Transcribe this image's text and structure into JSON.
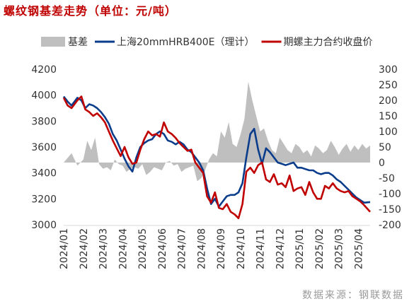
{
  "title": "螺纹钢基差走势（单位：元/吨）",
  "source": "数据来源：钢联数据",
  "colors": {
    "basis": "#bfbfbf",
    "spot": "#0a3c8c",
    "futures": "#c00000",
    "title": "#c00000"
  },
  "chart_data": {
    "type": "line",
    "legend_position": "top",
    "grid": false,
    "x_categories": [
      "2024/01",
      "2024/02",
      "2024/03",
      "2024/04",
      "2024/05",
      "2024/06",
      "2024/07",
      "2024/08",
      "2024/09",
      "2024/10",
      "2024/11",
      "2024/12",
      "2025/01",
      "2025/02",
      "2025/03",
      "2025/04"
    ],
    "left_axis": {
      "min": 3000,
      "max": 4200,
      "ticks": [
        "4200",
        "4000",
        "3800",
        "3600",
        "3400",
        "3200",
        "3000"
      ]
    },
    "right_axis": {
      "min": -200,
      "max": 300,
      "ticks": [
        "300",
        "250",
        "200",
        "150",
        "100",
        "50",
        "0",
        "-50",
        "-100",
        "-150",
        "-200"
      ]
    },
    "series": [
      {
        "name": "基差",
        "type": "area",
        "axis": "right",
        "color": "#bfbfbf",
        "x": [
          0,
          0.2,
          0.4,
          0.7,
          1.0,
          1.2,
          1.4,
          1.6,
          1.8,
          2.0,
          2.2,
          2.4,
          2.6,
          2.8,
          3.0,
          3.2,
          3.4,
          3.6,
          3.8,
          4.0,
          4.2,
          4.4,
          4.6,
          4.8,
          5.0,
          5.2,
          5.4,
          5.6,
          5.8,
          6.0,
          6.2,
          6.4,
          6.6,
          6.8,
          7.0,
          7.2,
          7.4,
          7.6,
          7.8,
          8.0,
          8.2,
          8.4,
          8.6,
          8.8,
          9.0,
          9.2,
          9.4,
          9.6,
          9.8,
          10.0,
          10.2,
          10.4,
          10.6,
          10.8,
          11.0,
          11.2,
          11.4,
          11.6,
          11.8,
          12.0,
          12.2,
          12.4,
          12.6,
          12.8,
          13.0,
          13.2,
          13.4,
          13.6,
          13.8,
          14.0,
          14.2,
          14.4,
          14.6,
          14.8,
          15.0,
          15.2,
          15.4,
          15.6
        ],
        "values": [
          0,
          15,
          30,
          -10,
          10,
          70,
          40,
          80,
          -5,
          -20,
          -15,
          -25,
          10,
          -5,
          -10,
          -30,
          -20,
          -15,
          -20,
          -5,
          -40,
          -30,
          -15,
          -20,
          -25,
          0,
          5,
          -10,
          -5,
          -30,
          -20,
          -15,
          -10,
          -60,
          -50,
          -25,
          10,
          30,
          20,
          100,
          80,
          130,
          60,
          50,
          90,
          140,
          260,
          200,
          150,
          100,
          110,
          70,
          40,
          30,
          80,
          60,
          40,
          30,
          60,
          50,
          30,
          40,
          20,
          55,
          45,
          30,
          40,
          70,
          50,
          25,
          45,
          60,
          35,
          55,
          40,
          60,
          45,
          55
        ]
      },
      {
        "name": "上海20mmHRB400E（理计）",
        "type": "line",
        "axis": "left",
        "color": "#0a3c8c",
        "x": [
          0,
          0.2,
          0.4,
          0.7,
          0.9,
          1.1,
          1.3,
          1.5,
          1.7,
          1.9,
          2.1,
          2.3,
          2.5,
          2.7,
          2.9,
          3.1,
          3.3,
          3.5,
          3.7,
          3.9,
          4.1,
          4.3,
          4.5,
          4.7,
          4.9,
          5.1,
          5.3,
          5.5,
          5.7,
          5.9,
          6.1,
          6.3,
          6.5,
          6.7,
          6.9,
          7.1,
          7.3,
          7.5,
          7.7,
          7.9,
          8.1,
          8.3,
          8.5,
          8.7,
          8.9,
          9.1,
          9.3,
          9.5,
          9.7,
          9.9,
          10.1,
          10.3,
          10.5,
          10.7,
          10.9,
          11.1,
          11.3,
          11.5,
          11.7,
          11.9,
          12.1,
          12.3,
          12.5,
          12.7,
          12.9,
          13.1,
          13.3,
          13.5,
          13.7,
          13.9,
          14.1,
          14.3,
          14.5,
          14.7,
          14.9,
          15.1,
          15.3,
          15.6
        ],
        "values": [
          3990,
          3950,
          3920,
          3980,
          3960,
          3900,
          3930,
          3920,
          3900,
          3870,
          3830,
          3780,
          3700,
          3650,
          3580,
          3510,
          3450,
          3410,
          3520,
          3600,
          3630,
          3650,
          3660,
          3700,
          3720,
          3700,
          3650,
          3640,
          3620,
          3640,
          3620,
          3580,
          3560,
          3520,
          3480,
          3420,
          3280,
          3160,
          3200,
          3140,
          3180,
          3220,
          3230,
          3230,
          3250,
          3320,
          3520,
          3700,
          3740,
          3580,
          3470,
          3590,
          3560,
          3520,
          3480,
          3470,
          3460,
          3470,
          3480,
          3440,
          3440,
          3430,
          3420,
          3420,
          3400,
          3390,
          3400,
          3400,
          3380,
          3350,
          3330,
          3300,
          3270,
          3240,
          3210,
          3190,
          3170,
          3175
        ]
      },
      {
        "name": "期螺主力合约收盘价",
        "type": "line",
        "axis": "left",
        "color": "#c00000",
        "x": [
          0,
          0.2,
          0.4,
          0.7,
          0.9,
          1.1,
          1.3,
          1.5,
          1.7,
          1.9,
          2.1,
          2.3,
          2.5,
          2.7,
          2.9,
          3.1,
          3.3,
          3.5,
          3.7,
          3.9,
          4.1,
          4.3,
          4.5,
          4.7,
          4.9,
          5.1,
          5.3,
          5.5,
          5.7,
          5.9,
          6.1,
          6.3,
          6.5,
          6.7,
          6.9,
          7.1,
          7.3,
          7.5,
          7.7,
          7.9,
          8.1,
          8.3,
          8.5,
          8.7,
          8.9,
          9.1,
          9.3,
          9.5,
          9.7,
          9.9,
          10.1,
          10.3,
          10.5,
          10.7,
          10.9,
          11.1,
          11.3,
          11.5,
          11.7,
          11.9,
          12.1,
          12.3,
          12.5,
          12.7,
          12.9,
          13.1,
          13.3,
          13.5,
          13.7,
          13.9,
          14.1,
          14.3,
          14.5,
          14.7,
          14.9,
          15.1,
          15.3,
          15.6
        ],
        "values": [
          3980,
          3920,
          3900,
          3960,
          3990,
          3890,
          3870,
          3840,
          3860,
          3830,
          3790,
          3720,
          3650,
          3590,
          3530,
          3600,
          3520,
          3470,
          3480,
          3580,
          3660,
          3720,
          3690,
          3700,
          3680,
          3790,
          3720,
          3700,
          3670,
          3630,
          3600,
          3570,
          3580,
          3480,
          3440,
          3400,
          3220,
          3170,
          3250,
          3130,
          3120,
          3160,
          3100,
          3080,
          3050,
          3160,
          3410,
          3440,
          3400,
          3460,
          3480,
          3350,
          3330,
          3390,
          3310,
          3320,
          3290,
          3380,
          3260,
          3280,
          3290,
          3230,
          3330,
          3250,
          3200,
          3200,
          3300,
          3280,
          3320,
          3280,
          3260,
          3250,
          3260,
          3220,
          3200,
          3180,
          3150,
          3100
        ]
      }
    ]
  }
}
